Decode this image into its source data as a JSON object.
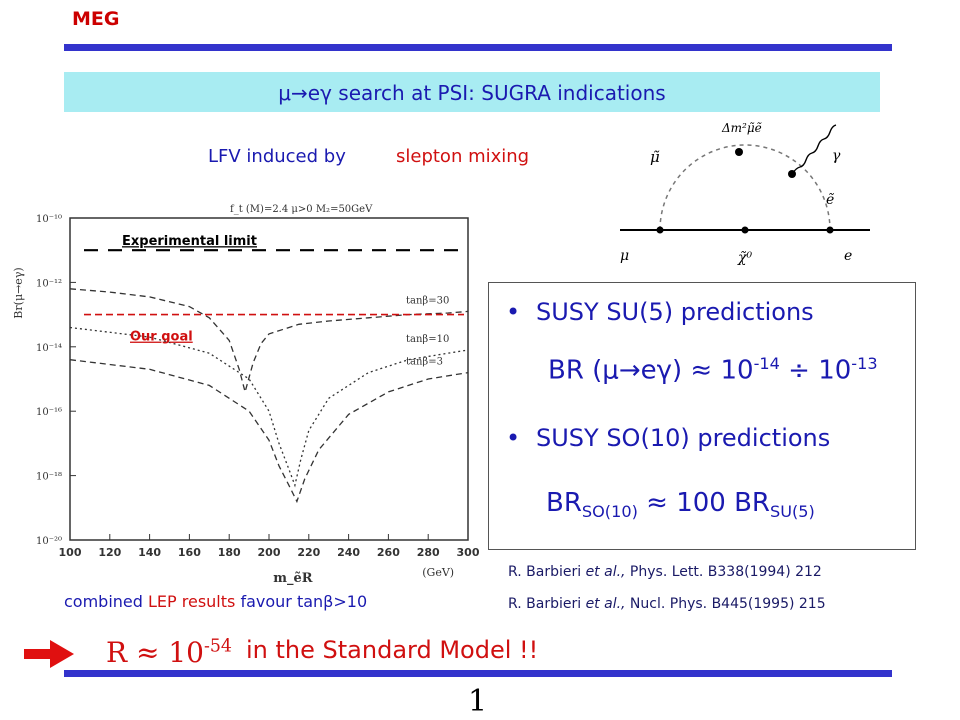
{
  "header": {
    "label": "MEG"
  },
  "title": {
    "text": "μ→eγ search at PSI: SUGRA indications"
  },
  "lfv": {
    "prefix": "LFV induced by",
    "highlight": "slepton mixing"
  },
  "feynman": {
    "labels": {
      "smuon": "μ̃",
      "mass_insertion": "Δm²μ̃ẽ",
      "photon": "γ",
      "selectron": "ẽ",
      "muon": "μ",
      "neutralino": "χ̃⁰",
      "electron": "e"
    }
  },
  "predictions": {
    "su5_title": "SUSY SU(5) predictions",
    "su5_formula": {
      "prefix": "BR (μ→eγ) ≈ 10",
      "exp1": "-14",
      "mid": " ÷ 10",
      "exp2": "-13"
    },
    "so10_title": "SUSY SO(10) predictions",
    "so10_formula": {
      "p1": "BR",
      "sub1": "SO(10)",
      "p2": " ≈ 100 BR",
      "sub2": "SU(5)"
    },
    "bullet": "•"
  },
  "references": [
    {
      "author": "R. Barbieri ",
      "etal": "et al.,",
      "citation": " Phys. Lett. B338(1994) 212"
    },
    {
      "author": "R. Barbieri ",
      "etal": "et al.,",
      "citation": " Nucl. Phys. B445(1995) 215"
    }
  ],
  "caption": {
    "w1": "combined ",
    "w2": "LEP",
    "w3": " results",
    "w4": " favour tan",
    "w5": "β>10"
  },
  "standard_model": {
    "formula_base": "R ≈ 10",
    "formula_exp": "-54",
    "text": "in the Standard Model !!"
  },
  "page_number": "1",
  "colors": {
    "title_bar": "#a8ecf2",
    "rule": "#3333cc",
    "accent_red": "#d01010",
    "text_blue": "#1a1ab0"
  },
  "chart_data": {
    "type": "line",
    "header": "f_t (M)=2.4   μ>0   M₂=50GeV",
    "ylabel": "Br(μ→eγ)",
    "xlabel": "m_ẽR",
    "xunit": "(GeV)",
    "xlim": [
      100,
      300
    ],
    "ylim_log10": [
      -20,
      -10
    ],
    "x_ticks": [
      "100",
      "120",
      "140",
      "160",
      "180",
      "200",
      "220",
      "240",
      "260",
      "280",
      "300"
    ],
    "y_ticks": [
      "10⁻¹⁰",
      "10⁻¹²",
      "10⁻¹⁴",
      "10⁻¹⁶",
      "10⁻¹⁸",
      "10⁻²⁰"
    ],
    "series": [
      {
        "name": "tanβ=30",
        "style": "dashed",
        "x": [
          100,
          120,
          140,
          160,
          170,
          180,
          185,
          188,
          192,
          196,
          200,
          215,
          230,
          250,
          270,
          290,
          300
        ],
        "log10_y": [
          -12.2,
          -12.3,
          -12.45,
          -12.75,
          -13.1,
          -13.8,
          -14.7,
          -15.4,
          -14.5,
          -13.9,
          -13.6,
          -13.3,
          -13.2,
          -13.1,
          -13.0,
          -12.95,
          -12.9
        ]
      },
      {
        "name": "tanβ=10",
        "style": "dotted",
        "x": [
          100,
          140,
          170,
          190,
          200,
          205,
          210,
          213,
          216,
          220,
          230,
          250,
          270,
          290,
          300
        ],
        "log10_y": [
          -13.4,
          -13.7,
          -14.2,
          -15.0,
          -16.0,
          -17.0,
          -17.8,
          -18.3,
          -17.5,
          -16.6,
          -15.6,
          -14.8,
          -14.4,
          -14.2,
          -14.1
        ]
      },
      {
        "name": "tanβ=3",
        "style": "dashed",
        "x": [
          100,
          140,
          170,
          190,
          200,
          205,
          210,
          214,
          218,
          225,
          240,
          260,
          280,
          300
        ],
        "log10_y": [
          -14.4,
          -14.7,
          -15.2,
          -16.0,
          -16.9,
          -17.7,
          -18.3,
          -18.8,
          -18.1,
          -17.2,
          -16.1,
          -15.4,
          -15.0,
          -14.8
        ]
      }
    ],
    "annotations": [
      {
        "text": "Experimental limit",
        "log10_y": -11.0,
        "line": "dashed",
        "color": "#000000"
      },
      {
        "text": "Our goal",
        "log10_y": -13.0,
        "line": "dashed",
        "color": "#d01010"
      }
    ]
  }
}
